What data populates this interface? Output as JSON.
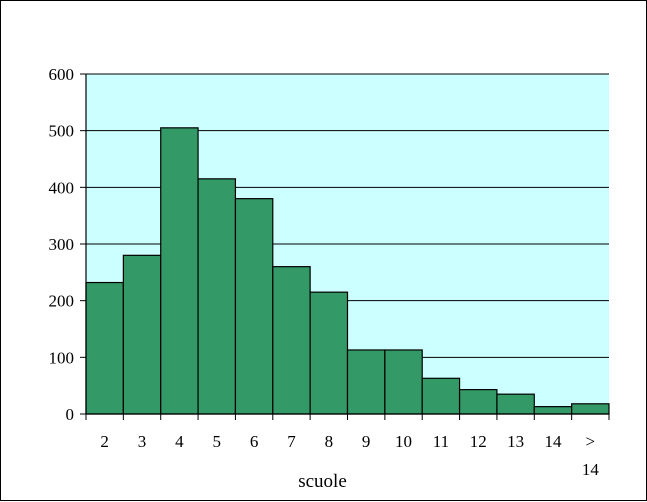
{
  "chart_data": {
    "type": "bar",
    "title": "",
    "xlabel": "scuole",
    "ylabel": "",
    "ylim": [
      0,
      600
    ],
    "yticks": [
      0,
      100,
      200,
      300,
      400,
      500,
      600
    ],
    "categories": [
      "2",
      "3",
      "4",
      "5",
      "6",
      "7",
      "8",
      "9",
      "10",
      "11",
      "12",
      "13",
      "14",
      "> 14"
    ],
    "values": [
      232,
      280,
      505,
      415,
      380,
      260,
      215,
      113,
      113,
      63,
      43,
      35,
      13,
      18
    ],
    "grid": true,
    "legend": "none",
    "colors": {
      "plot_background": "#ccffff",
      "bar_fill": "#339966",
      "bar_stroke": "#000000",
      "grid": "#000000"
    }
  }
}
